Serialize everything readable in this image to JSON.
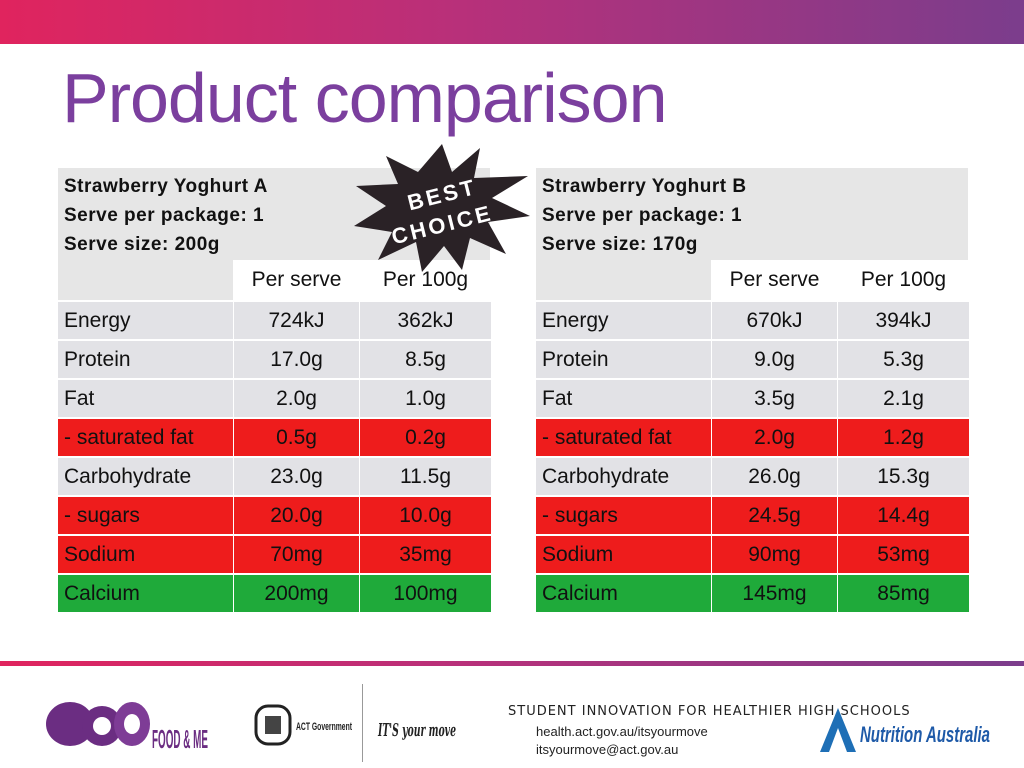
{
  "title": "Product comparison",
  "badge": {
    "line1": "BEST",
    "line2": "CHOICE"
  },
  "columns": {
    "per_serve": "Per serve",
    "per_100g": "Per 100g"
  },
  "products": [
    {
      "name": "Strawberry Yoghurt A",
      "serve_package": "Serve per package: 1",
      "serve_size": "Serve size: 200g",
      "rows": [
        {
          "label": "Energy",
          "serve": "724kJ",
          "per100": "362kJ",
          "status": "neutral"
        },
        {
          "label": "Protein",
          "serve": "17.0g",
          "per100": "8.5g",
          "status": "neutral"
        },
        {
          "label": "Fat",
          "serve": "2.0g",
          "per100": "1.0g",
          "status": "neutral"
        },
        {
          "label": "- saturated fat",
          "serve": "0.5g",
          "per100": "0.2g",
          "status": "red"
        },
        {
          "label": "Carbohydrate",
          "serve": "23.0g",
          "per100": "11.5g",
          "status": "neutral"
        },
        {
          "label": "- sugars",
          "serve": "20.0g",
          "per100": "10.0g",
          "status": "red"
        },
        {
          "label": "Sodium",
          "serve": "70mg",
          "per100": "35mg",
          "status": "red"
        },
        {
          "label": "Calcium",
          "serve": "200mg",
          "per100": "100mg",
          "status": "green"
        }
      ]
    },
    {
      "name": "Strawberry Yoghurt B",
      "serve_package": "Serve per package: 1",
      "serve_size": "Serve size: 170g",
      "rows": [
        {
          "label": "Energy",
          "serve": "670kJ",
          "per100": "394kJ",
          "status": "neutral"
        },
        {
          "label": "Protein",
          "serve": "9.0g",
          "per100": "5.3g",
          "status": "neutral"
        },
        {
          "label": "Fat",
          "serve": "3.5g",
          "per100": "2.1g",
          "status": "neutral"
        },
        {
          "label": "- saturated fat",
          "serve": "2.0g",
          "per100": "1.2g",
          "status": "red"
        },
        {
          "label": "Carbohydrate",
          "serve": "26.0g",
          "per100": "15.3g",
          "status": "neutral"
        },
        {
          "label": "- sugars",
          "serve": "24.5g",
          "per100": "14.4g",
          "status": "red"
        },
        {
          "label": "Sodium",
          "serve": "90mg",
          "per100": "53mg",
          "status": "red"
        },
        {
          "label": "Calcium",
          "serve": "145mg",
          "per100": "85mg",
          "status": "green"
        }
      ]
    }
  ],
  "footer": {
    "logo_food_me": "FOOD & ME",
    "logo_act": "ACT Government",
    "logo_its_your_move": "IT'S your move",
    "program": "STUDENT INNOVATION FOR HEALTHIER HIGH SCHOOLS",
    "website": "health.act.gov.au/itsyourmove",
    "email": "itsyourmove@act.gov.au",
    "logo_nutrition_australia": "Nutrition Australia"
  },
  "colors": {
    "accent": "#7b3f9e",
    "red": "#ee1c1c",
    "green": "#1faa3a",
    "grey": "#e2e2e6"
  }
}
